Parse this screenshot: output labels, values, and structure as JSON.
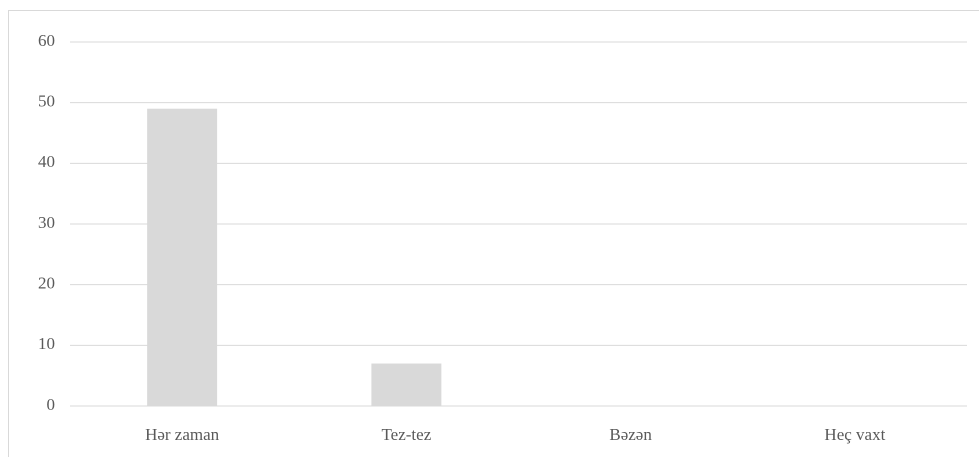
{
  "chart_data": {
    "type": "bar",
    "categories": [
      "Hər zaman",
      "Tez-tez",
      "Bəzən",
      "Heç vaxt"
    ],
    "values": [
      49,
      7,
      0,
      0
    ],
    "color": "#d9d9d9",
    "ylim": [
      0,
      60
    ],
    "yticks": [
      0,
      10,
      20,
      30,
      40,
      50,
      60
    ],
    "grid": true
  }
}
